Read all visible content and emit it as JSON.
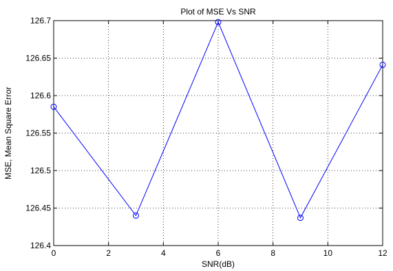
{
  "chart_data": {
    "type": "line",
    "title": "Plot of MSE Vs SNR",
    "xlabel": "SNR(dB)",
    "ylabel": "MSE, Mean Square Error",
    "x": [
      0,
      3,
      6,
      9,
      12
    ],
    "series": [
      {
        "values": [
          126.585,
          126.44,
          126.698,
          126.437,
          126.641
        ]
      }
    ],
    "xlim": [
      0,
      12
    ],
    "ylim": [
      126.4,
      126.7
    ],
    "xticks": [
      "0",
      "2",
      "4",
      "6",
      "8",
      "10",
      "12"
    ],
    "yticks": [
      "126.4",
      "126.45",
      "126.5",
      "126.55",
      "126.6",
      "126.65",
      "126.7"
    ],
    "grid": true,
    "line_color": "#0000ff",
    "marker": "circle"
  }
}
